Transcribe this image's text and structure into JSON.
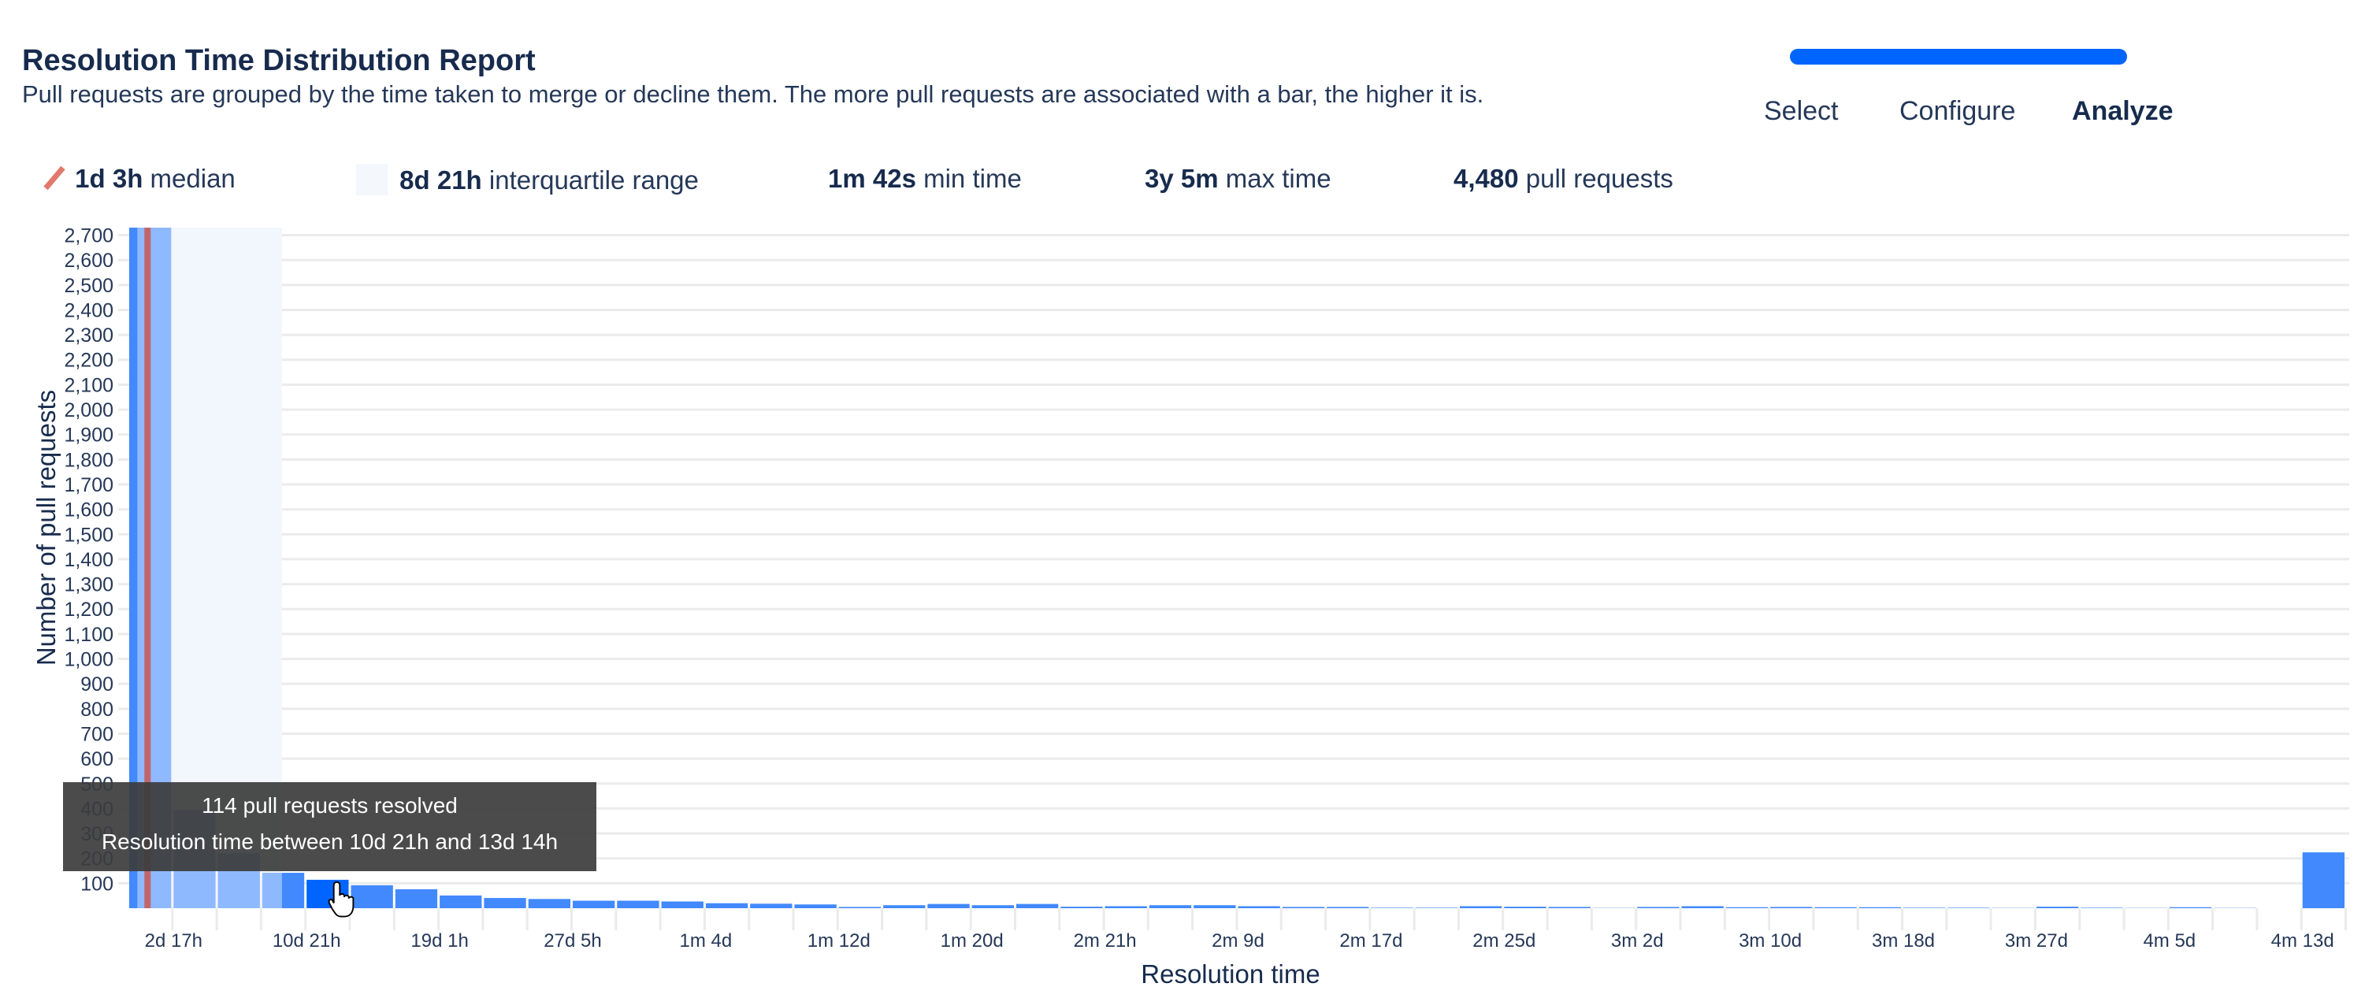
{
  "header": {
    "title": "Resolution Time Distribution Report",
    "subtitle": "Pull requests are grouped by the time taken to merge or decline them. The more pull requests are associated with a bar, the higher it is."
  },
  "stepper": {
    "progress_percent": 100,
    "steps": [
      {
        "label": "Select",
        "active": false
      },
      {
        "label": "Configure",
        "active": false
      },
      {
        "label": "Analyze",
        "active": true
      }
    ]
  },
  "stats": {
    "median": {
      "value": "1d 3h",
      "label": "median"
    },
    "iqr": {
      "value": "8d 21h",
      "label": "interquartile range"
    },
    "min": {
      "value": "1m 42s",
      "label": "min time"
    },
    "max": {
      "value": "3y 5m",
      "label": "max time"
    },
    "count": {
      "value": "4,480",
      "label": "pull requests"
    }
  },
  "tooltip": {
    "line1": "114 pull requests resolved",
    "line2": "Resolution time between 10d 21h and 13d 14h"
  },
  "colors": {
    "bar": "#4189fd",
    "bar_hover": "#0065ff",
    "median": "#c0666a",
    "median_icon": "#e07a6e",
    "iqr_band": "#f4f7fc",
    "accent": "#0065ff"
  },
  "chart_data": {
    "type": "bar",
    "xlabel": "Resolution time",
    "ylabel": "Number of pull requests",
    "ylim": [
      0,
      2730
    ],
    "yticks": [
      100,
      200,
      300,
      400,
      500,
      600,
      700,
      800,
      900,
      1000,
      1100,
      1200,
      1300,
      1400,
      1500,
      1600,
      1700,
      1800,
      1900,
      2000,
      2100,
      2200,
      2300,
      2400,
      2500,
      2600,
      2700
    ],
    "ytick_labels": [
      "100",
      "200",
      "300",
      "400",
      "500",
      "600",
      "700",
      "800",
      "900",
      "1,000",
      "1,100",
      "1,200",
      "1,300",
      "1,400",
      "1,500",
      "1,600",
      "1,700",
      "1,800",
      "1,900",
      "2,000",
      "2,100",
      "2,200",
      "2,300",
      "2,400",
      "2,500",
      "2,600",
      "2,700"
    ],
    "grid": true,
    "bin_width_hours": 65.33,
    "xtick_labels": [
      "2d 17h",
      "10d 21h",
      "19d 1h",
      "27d 5h",
      "1m 4d",
      "1m 12d",
      "1m 20d",
      "2m 21h",
      "2m 9d",
      "2m 17d",
      "2m 25d",
      "3m 2d",
      "3m 10d",
      "3m 18d",
      "3m 27d",
      "4m 5d",
      "4m 13d"
    ],
    "values": [
      2755,
      395,
      221,
      142,
      114,
      92,
      76,
      51,
      41,
      37,
      30,
      30,
      27,
      20,
      18,
      15,
      5,
      12,
      17,
      12,
      17,
      6,
      8,
      12,
      12,
      8,
      5,
      5,
      2,
      2,
      8,
      6,
      5,
      1,
      5,
      8,
      4,
      5,
      4,
      4,
      2,
      2,
      1,
      6,
      2,
      1,
      4,
      1,
      0,
      224
    ],
    "hovered_bin": 4,
    "median_hours": 27,
    "iqr_hours": [
      12,
      225
    ]
  }
}
